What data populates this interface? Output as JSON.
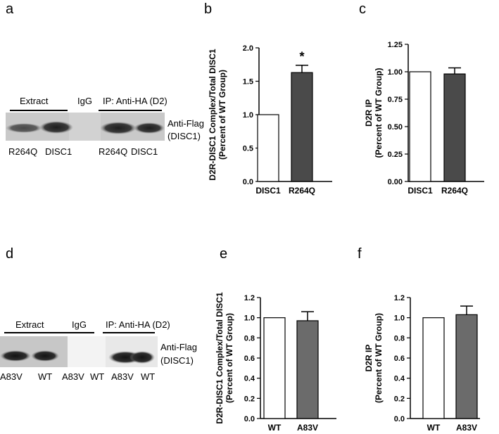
{
  "panels": {
    "a": "a",
    "b": "b",
    "c": "c",
    "d": "d",
    "e": "e",
    "f": "f"
  },
  "blot_top": {
    "group_extract": "Extract",
    "group_igg": "IgG",
    "group_ip": "IP: Anti-HA (D2)",
    "right_label_1": "Anti-Flag",
    "right_label_2": "(DISC1)",
    "lanes": [
      "R264Q",
      "DISC1",
      "R264Q",
      "DISC1"
    ]
  },
  "blot_bottom": {
    "group_extract": "Extract",
    "group_igg": "IgG",
    "group_ip": "IP: Anti-HA (D2)",
    "right_label_1": "Anti-Flag",
    "right_label_2": "(DISC1)",
    "lanes": [
      "A83V",
      "WT",
      "A83V",
      "WT",
      "A83V",
      "WT"
    ]
  },
  "colors": {
    "bar_dark": "#4a4a4a",
    "bar_mid": "#6b6b6b",
    "bar_white": "#ffffff",
    "axis": "#000000"
  },
  "chart_data": [
    {
      "id": "b",
      "type": "bar",
      "categories": [
        "DISC1",
        "R264Q"
      ],
      "values": [
        1.0,
        1.63
      ],
      "errors": [
        0,
        0.11
      ],
      "fills": [
        "#ffffff",
        "#4a4a4a"
      ],
      "ylim": [
        0,
        2.0
      ],
      "yticks": [
        0.0,
        0.5,
        1.0,
        1.5,
        2.0
      ],
      "ytick_labels": [
        "0.0",
        "0.5",
        "1.0",
        "1.5",
        "2.0"
      ],
      "ylabel_1": "D2R-DISC1 Complex/Total DISC1",
      "ylabel_2": "(Percent of WT Group)",
      "annotation": "*"
    },
    {
      "id": "c",
      "type": "bar",
      "categories": [
        "DISC1",
        "R264Q"
      ],
      "values": [
        1.0,
        0.98
      ],
      "errors": [
        0,
        0.055
      ],
      "fills": [
        "#ffffff",
        "#4a4a4a"
      ],
      "ylim": [
        0,
        1.25
      ],
      "yticks": [
        0.0,
        0.25,
        0.5,
        0.75,
        1.0,
        1.25
      ],
      "ytick_labels": [
        "0.00",
        "0.25",
        "0.50",
        "0.75",
        "1.00",
        "1.25"
      ],
      "ylabel_1": "D2R IP",
      "ylabel_2": "(Percent of WT Group)",
      "annotation": ""
    },
    {
      "id": "e",
      "type": "bar",
      "categories": [
        "WT",
        "A83V"
      ],
      "values": [
        1.0,
        0.97
      ],
      "errors": [
        0,
        0.09
      ],
      "fills": [
        "#ffffff",
        "#6b6b6b"
      ],
      "ylim": [
        0,
        1.2
      ],
      "yticks": [
        0.0,
        0.2,
        0.4,
        0.6,
        0.8,
        1.0,
        1.2
      ],
      "ytick_labels": [
        "0.0",
        "0.2",
        "0.4",
        "0.6",
        "0.8",
        "1.0",
        "1.2"
      ],
      "ylabel_1": "D2R-DISC1 Complex/Total DISC1",
      "ylabel_2": "(Percent of WT Group)",
      "annotation": ""
    },
    {
      "id": "f",
      "type": "bar",
      "categories": [
        "WT",
        "A83V"
      ],
      "values": [
        1.0,
        1.03
      ],
      "errors": [
        0,
        0.085
      ],
      "fills": [
        "#ffffff",
        "#6b6b6b"
      ],
      "ylim": [
        0,
        1.2
      ],
      "yticks": [
        0.0,
        0.2,
        0.4,
        0.6,
        0.8,
        1.0,
        1.2
      ],
      "ytick_labels": [
        "0.0",
        "0.2",
        "0.4",
        "0.6",
        "0.8",
        "1.0",
        "1.2"
      ],
      "ylabel_1": "D2R IP",
      "ylabel_2": "(Percent of WT Group)",
      "annotation": ""
    }
  ]
}
